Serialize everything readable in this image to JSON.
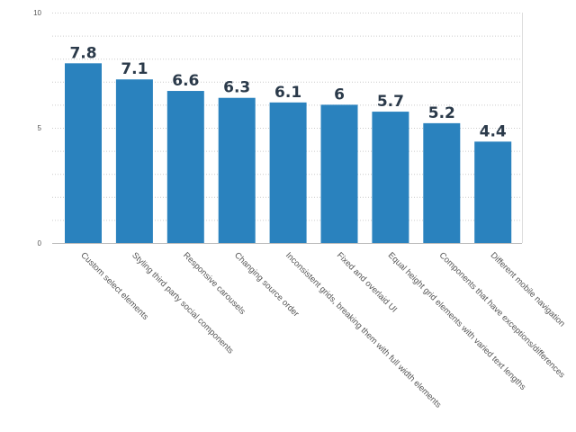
{
  "chart_data": {
    "type": "bar",
    "categories": [
      "Custom select elements",
      "Styling third party social components",
      "Responsive carousels",
      "Changing source order",
      "Inconsistent grids, breaking them with full width elements",
      "Fixed and overlaid UI",
      "Equal height grid elements with varied text lengths",
      "Components that have exceptions/differences",
      "Different mobile navigation"
    ],
    "values": [
      7.8,
      7.1,
      6.6,
      6.3,
      6.1,
      6,
      5.7,
      5.2,
      4.4
    ],
    "value_labels": [
      "7.8",
      "7.1",
      "6.6",
      "6.3",
      "6.1",
      "6",
      "5.7",
      "5.2",
      "4.4"
    ],
    "ylim": [
      0,
      10
    ],
    "y_ticks": [
      0,
      5,
      10
    ],
    "y_tick_labels": [
      "0",
      "5",
      "10"
    ],
    "grid": "horizontal dotted",
    "legend": "none",
    "colors": {
      "bar": "#2a82be",
      "grid": "#cccccc",
      "axis": "#bbbbbb"
    }
  }
}
